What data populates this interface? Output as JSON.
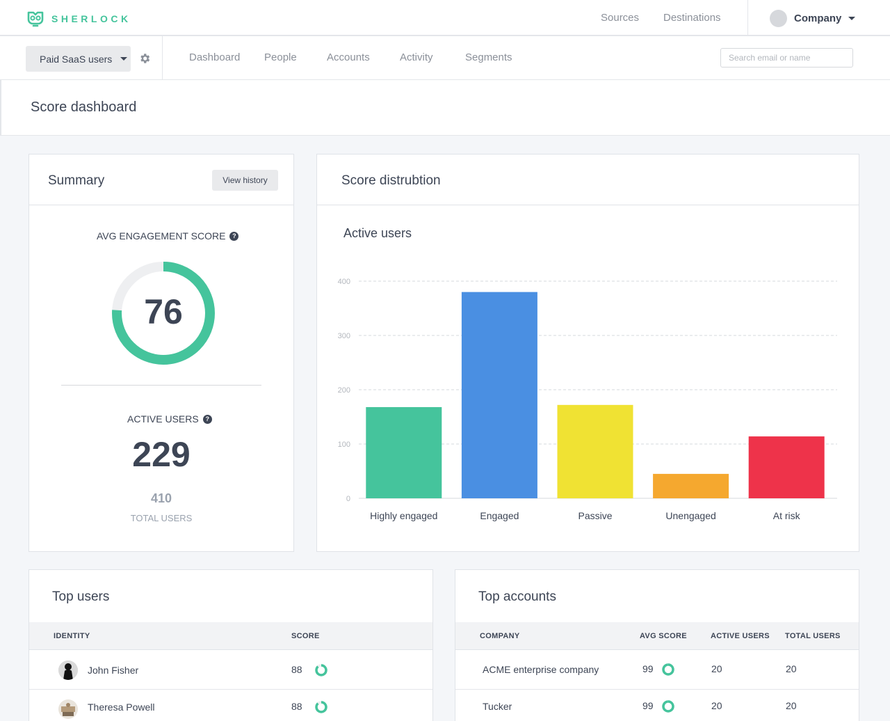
{
  "app": {
    "brand": "SHERLOCK",
    "top_links": [
      "Sources",
      "Destinations"
    ],
    "account_label": "Company"
  },
  "subnav": {
    "segment": "Paid SaaS users",
    "tabs": [
      "Dashboard",
      "People",
      "Accounts",
      "Activity",
      "Segments"
    ],
    "search_placeholder": "Search email or name"
  },
  "page": {
    "title": "Score dashboard"
  },
  "summary": {
    "title": "Summary",
    "history_button": "View history",
    "avg_label": "AVG ENGAGEMENT SCORE",
    "avg_score": "76",
    "avg_fraction": 0.76,
    "active_label": "ACTIVE USERS",
    "active_users": "229",
    "total_users": "410",
    "total_label": "TOTAL USERS"
  },
  "distribution": {
    "title": "Score distrubtion",
    "chart_title": "Active users"
  },
  "chart_data": {
    "type": "bar",
    "title": "Active users",
    "categories": [
      "Highly engaged",
      "Engaged",
      "Passive",
      "Unengaged",
      "At risk"
    ],
    "values": [
      168,
      380,
      172,
      45,
      114
    ],
    "colors": [
      "#45c49c",
      "#4a8fe2",
      "#f0e233",
      "#f5a82f",
      "#ee334a"
    ],
    "yticks": [
      0,
      100,
      200,
      300,
      400
    ],
    "ylim": [
      0,
      400
    ],
    "grid": true
  },
  "top_users": {
    "title": "Top users",
    "headers": [
      "IDENTITY",
      "SCORE"
    ],
    "rows": [
      {
        "name": "John Fisher",
        "score": "88",
        "fraction": 0.88
      },
      {
        "name": "Theresa Powell",
        "score": "88",
        "fraction": 0.88
      }
    ]
  },
  "top_accounts": {
    "title": "Top accounts",
    "headers": [
      "COMPANY",
      "AVG SCORE",
      "ACTIVE USERS",
      "TOTAL USERS"
    ],
    "rows": [
      {
        "company": "ACME enterprise company",
        "avg_score": "99",
        "fraction": 0.99,
        "active": "20",
        "total": "20"
      },
      {
        "company": "Tucker",
        "avg_score": "99",
        "fraction": 0.99,
        "active": "20",
        "total": "20"
      }
    ]
  },
  "colors": {
    "accent": "#45c49c",
    "text": "#3d4555",
    "muted": "#8b9099"
  }
}
